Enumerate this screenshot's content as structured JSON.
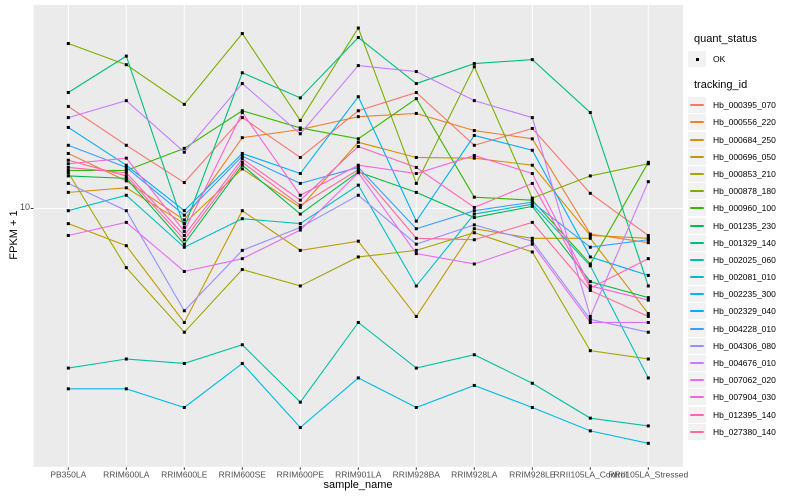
{
  "style": {
    "panel_bg": "#EBEBEB",
    "grid_color": "#FFFFFF",
    "tick_color": "#333333",
    "tick_label_color": "#4D4D4D",
    "axis_title_color": "#000000",
    "legend_key_bg": "#F2F2F2",
    "point_color": "#000000"
  },
  "axes": {
    "x_title": "sample_name",
    "y_title": "FPKM + 1",
    "y_ticks": [
      "10"
    ]
  },
  "legend": {
    "quant": {
      "title": "quant_status",
      "items": [
        {
          "label": "OK",
          "marker": "black-point"
        }
      ]
    },
    "tracking": {
      "title": "tracking_id"
    }
  },
  "chart_data": {
    "type": "line",
    "title": "",
    "xlabel": "sample_name",
    "ylabel": "FPKM + 1",
    "x_categories": [
      "PB350LA",
      "RRIM600LA",
      "RRIM600LE",
      "RRIM600SE",
      "RRIM600PE",
      "RRIM901LA",
      "RRIM928BA",
      "RRIM928LA",
      "RRIM928LE",
      "RRII105LA_Control",
      "RRII105LA_Stressed"
    ],
    "y_scale": "log10",
    "y_tick_values": [
      10
    ],
    "ylim_approx": [
      0.95,
      65
    ],
    "grid": "major white gridlines: one vertical per sample, horizontal at y=10",
    "legend_position": "right",
    "point_marker_meaning": "quant_status OK (black point at every observation)",
    "series": [
      {
        "name": "Hb_000395_070",
        "color": "#F8766D",
        "values": [
          25.6,
          17.9,
          12.7,
          23.1,
          16.0,
          24.6,
          29.1,
          17.9,
          20.9,
          11.5,
          7.8
        ]
      },
      {
        "name": "Hb_000556_220",
        "color": "#EA8331",
        "values": [
          16.6,
          12.9,
          9.0,
          19.2,
          20.7,
          23.3,
          24.0,
          20.5,
          19.0,
          7.9,
          7.3
        ]
      },
      {
        "name": "Hb_000684_250",
        "color": "#D89000",
        "values": [
          11.6,
          12.1,
          8.7,
          14.4,
          10.1,
          18.4,
          16.0,
          15.9,
          14.9,
          7.8,
          7.6
        ]
      },
      {
        "name": "Hb_000696_050",
        "color": "#C09B00",
        "values": [
          8.7,
          7.1,
          3.5,
          9.8,
          6.8,
          7.4,
          3.7,
          8.3,
          7.6,
          7.6,
          3.8
        ]
      },
      {
        "name": "Hb_000853_210",
        "color": "#A3A500",
        "values": [
          13.9,
          5.8,
          3.2,
          5.7,
          4.9,
          6.4,
          6.8,
          8.0,
          6.7,
          2.7,
          2.5
        ]
      },
      {
        "name": "Hb_000878_180",
        "color": "#7CAE00",
        "values": [
          45.7,
          37.6,
          26.1,
          50.1,
          22.5,
          52.7,
          12.6,
          36.9,
          11.0,
          13.5,
          15.1
        ]
      },
      {
        "name": "Hb_000960_100",
        "color": "#39B600",
        "values": [
          14.2,
          14.2,
          17.4,
          24.6,
          21.0,
          19.0,
          27.5,
          11.1,
          10.8,
          6.0,
          15.3
        ]
      },
      {
        "name": "Hb_001235_230",
        "color": "#00BB4E",
        "values": [
          13.5,
          13.2,
          7.2,
          14.9,
          9.5,
          14.0,
          11.6,
          9.2,
          10.2,
          5.1,
          4.4
        ]
      },
      {
        "name": "Hb_001329_140",
        "color": "#00BF7D",
        "values": [
          29.1,
          40.7,
          8.4,
          34.9,
          27.7,
          48.3,
          31.6,
          38.0,
          39.4,
          24.2,
          4.9
        ]
      },
      {
        "name": "Hb_002025_060",
        "color": "#00C1A3",
        "values": [
          2.3,
          2.5,
          2.4,
          2.85,
          1.68,
          3.5,
          2.3,
          2.6,
          2.0,
          1.45,
          1.35
        ]
      },
      {
        "name": "Hb_002081_010",
        "color": "#00BFC4",
        "values": [
          9.8,
          11.3,
          7.0,
          9.1,
          8.7,
          12.4,
          4.9,
          9.5,
          10.4,
          5.9,
          2.1
        ]
      },
      {
        "name": "Hb_002235_300",
        "color": "#00BAE0",
        "values": [
          1.9,
          1.9,
          1.6,
          2.4,
          1.33,
          2.1,
          1.6,
          1.96,
          1.6,
          1.29,
          1.15
        ]
      },
      {
        "name": "Hb_002329_040",
        "color": "#00B0F6",
        "values": [
          21.1,
          14.9,
          9.8,
          16.6,
          13.8,
          28.0,
          8.9,
          19.6,
          17.1,
          6.4,
          5.4
        ]
      },
      {
        "name": "Hb_004228_010",
        "color": "#35A2FF",
        "values": [
          17.9,
          14.6,
          9.4,
          16.2,
          12.6,
          14.6,
          8.3,
          9.8,
          10.6,
          7.0,
          7.5
        ]
      },
      {
        "name": "Hb_004306_080",
        "color": "#9590FF",
        "values": [
          12.6,
          9.8,
          3.9,
          6.8,
          8.4,
          11.3,
          7.2,
          8.6,
          7.4,
          3.6,
          3.2
        ]
      },
      {
        "name": "Hb_004676_010",
        "color": "#C77CFF",
        "values": [
          23.1,
          27.0,
          16.8,
          31.6,
          19.9,
          37.3,
          35.3,
          27.0,
          23.1,
          3.7,
          12.8
        ]
      },
      {
        "name": "Hb_007062_020",
        "color": "#E76BF3",
        "values": [
          7.8,
          8.8,
          5.6,
          6.3,
          8.2,
          13.9,
          6.6,
          6.0,
          7.2,
          3.5,
          3.5
        ]
      },
      {
        "name": "Hb_007904_030",
        "color": "#FA62DB",
        "values": [
          15.1,
          15.9,
          8.1,
          24.2,
          11.3,
          14.9,
          13.8,
          16.3,
          13.8,
          4.9,
          4.3
        ]
      },
      {
        "name": "Hb_012395_140",
        "color": "#FF62BC",
        "values": [
          14.6,
          13.9,
          7.8,
          15.8,
          10.8,
          17.7,
          14.6,
          10.1,
          12.6,
          4.8,
          6.3
        ]
      },
      {
        "name": "Hb_027380_140",
        "color": "#FF6A98",
        "values": [
          15.6,
          13.5,
          7.5,
          15.3,
          10.3,
          14.3,
          7.6,
          7.5,
          8.8,
          4.7,
          3.7
        ]
      }
    ]
  }
}
